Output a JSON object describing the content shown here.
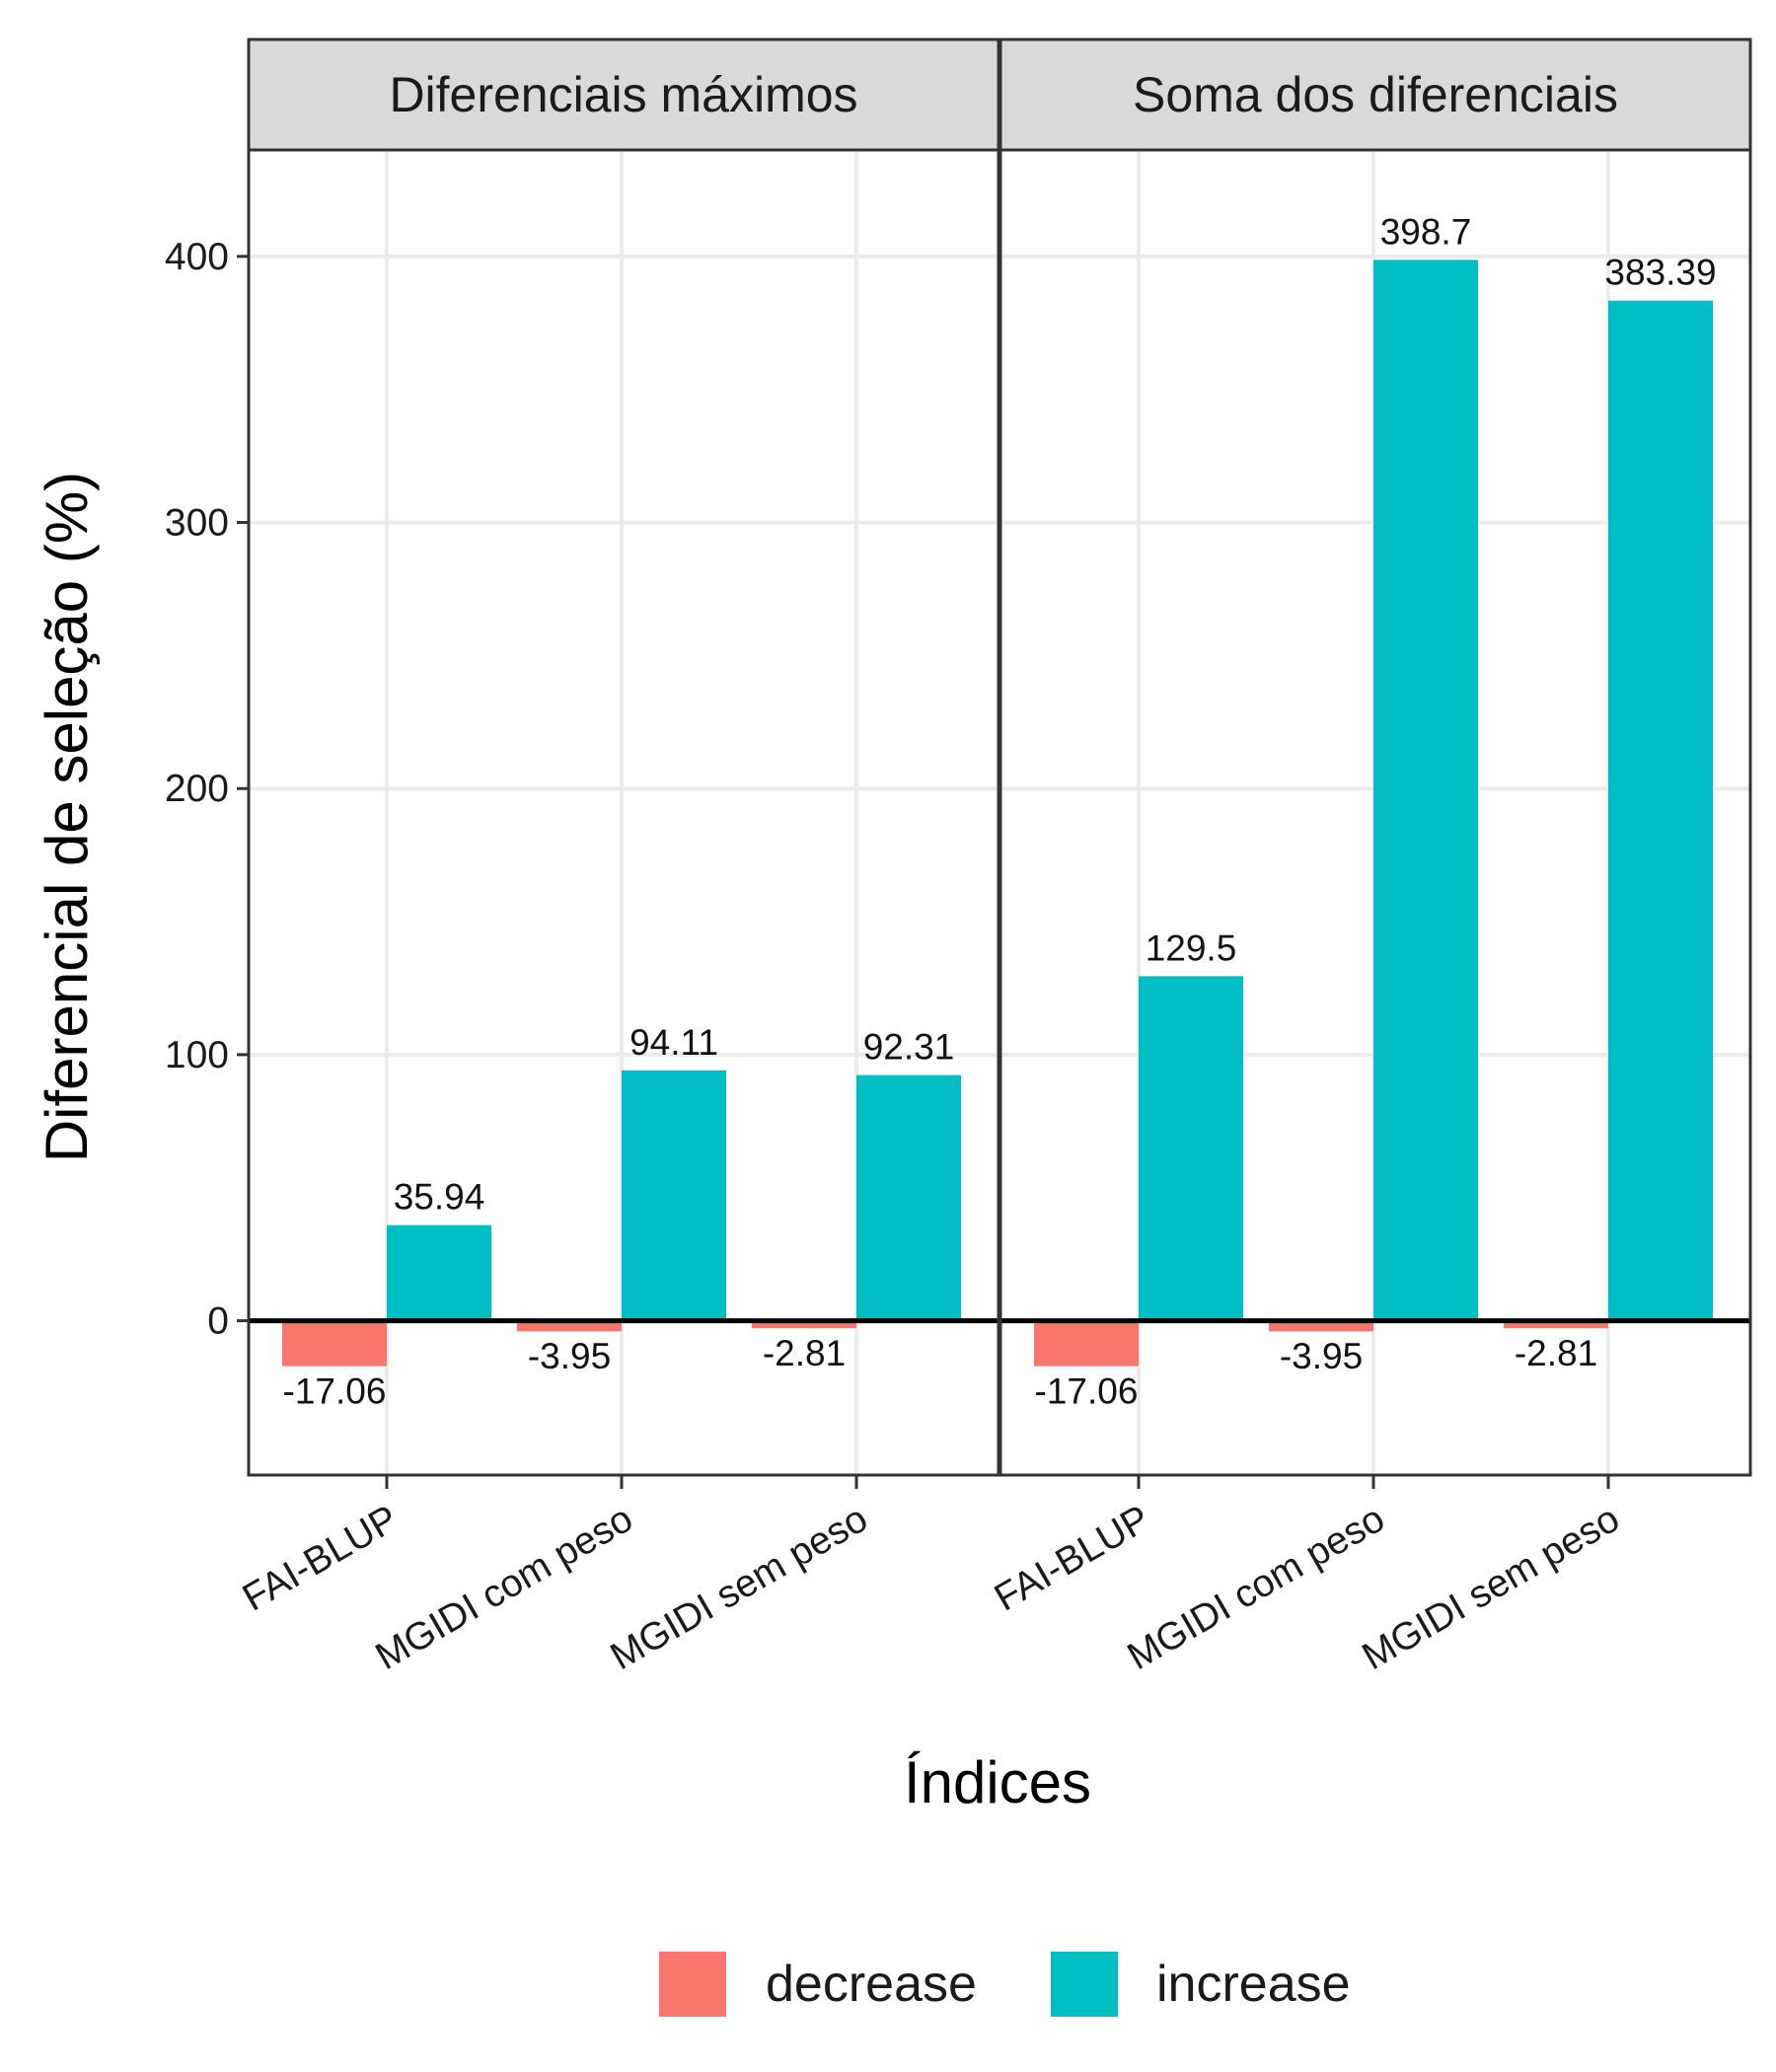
{
  "chart_data": {
    "type": "bar",
    "xlabel": "Índices",
    "ylabel": "Diferencial de seleção (%)",
    "ylim": [
      -58,
      440
    ],
    "yticks": [
      0,
      100,
      200,
      300,
      400
    ],
    "categories": [
      "FAI-BLUP",
      "MGIDI com peso",
      "MGIDI sem peso"
    ],
    "grid": true,
    "legend_position": "bottom",
    "panels": [
      {
        "title": "Diferenciais máximos",
        "series": [
          {
            "name": "decrease",
            "values": [
              -17.06,
              -3.95,
              -2.81
            ],
            "labels": [
              "-17.06",
              "-3.95",
              "-2.81"
            ]
          },
          {
            "name": "increase",
            "values": [
              35.94,
              94.11,
              92.31
            ],
            "labels": [
              "35.94",
              "94.11",
              "92.31"
            ]
          }
        ]
      },
      {
        "title": "Soma dos diferenciais",
        "series": [
          {
            "name": "decrease",
            "values": [
              -17.06,
              -3.95,
              -2.81
            ],
            "labels": [
              "-17.06",
              "-3.95",
              "-2.81"
            ]
          },
          {
            "name": "increase",
            "values": [
              129.5,
              398.7,
              383.39
            ],
            "labels": [
              "129.5",
              "398.7",
              "383.39"
            ]
          }
        ]
      }
    ],
    "legend": [
      {
        "name": "decrease",
        "color": "#F8766D"
      },
      {
        "name": "increase",
        "color": "#00BFC4"
      }
    ]
  }
}
